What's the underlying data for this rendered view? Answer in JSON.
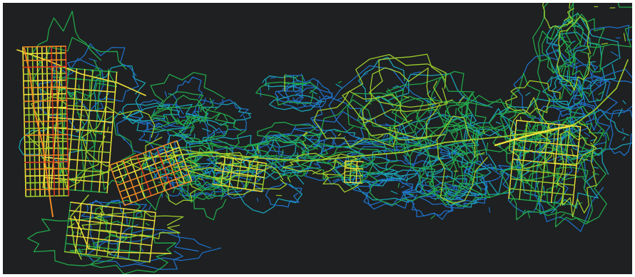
{
  "map": {
    "background_color": "#1e2022",
    "frame_color": "#ffffff",
    "colors": {
      "blue": "#1f6fc4",
      "cyan": "#1aa3b5",
      "green": "#23a64a",
      "yellow_green": "#9ccc2c",
      "yellow": "#f2e23a",
      "orange": "#f08a24",
      "red": "#e03a20"
    },
    "legend": [],
    "title": ""
  }
}
